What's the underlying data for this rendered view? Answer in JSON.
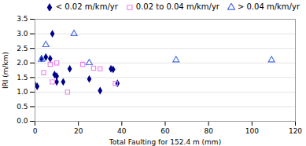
{
  "chart_data": {
    "type": "scatter",
    "xlabel": "Total Faulting for 152.4 m (mm)",
    "ylabel": "IRI (m/km)",
    "xlim": [
      0,
      120
    ],
    "ylim": [
      0.0,
      3.5
    ],
    "xticks": [
      0,
      20,
      40,
      60,
      80,
      100,
      120
    ],
    "yticks": [
      {
        "value": 0.0,
        "label": "0.0"
      },
      0.5,
      {
        "value": 1.0,
        "label": "1.0"
      },
      1.5,
      {
        "value": 2.0,
        "label": "2.0"
      },
      2.5,
      {
        "value": 3.0,
        "label": "3.0"
      },
      3.5
    ],
    "grid": "y",
    "legend": "upper right",
    "series": [
      {
        "name": "< 0.02 m/km/yr",
        "color": "#00008B",
        "marker": "filled_diamond",
        "x": [
          0,
          1,
          3,
          5,
          7,
          8,
          9,
          10,
          10,
          13,
          16,
          25,
          30,
          35,
          36,
          38
        ],
        "values": [
          1.25,
          1.2,
          2.15,
          2.2,
          2.15,
          3.0,
          1.6,
          1.55,
          1.35,
          1.35,
          1.8,
          1.45,
          1.05,
          1.8,
          1.78,
          1.3
        ]
      },
      {
        "name": "0.02 to 0.04 m/km/yr",
        "color": "#EE82EE",
        "marker": "open_square",
        "x": [
          4,
          7,
          8,
          10,
          15,
          22,
          27,
          30,
          37
        ],
        "values": [
          1.67,
          1.95,
          1.35,
          2.0,
          1.0,
          1.95,
          1.82,
          1.8,
          1.3
        ]
      },
      {
        "name": "> 0.04 m/km/yr",
        "color": "#4169E1",
        "marker": "open_triangle",
        "x": [
          3,
          5,
          18,
          25,
          65,
          109
        ],
        "values": [
          2.12,
          2.62,
          3.0,
          2.0,
          2.1,
          2.1
        ]
      }
    ]
  }
}
